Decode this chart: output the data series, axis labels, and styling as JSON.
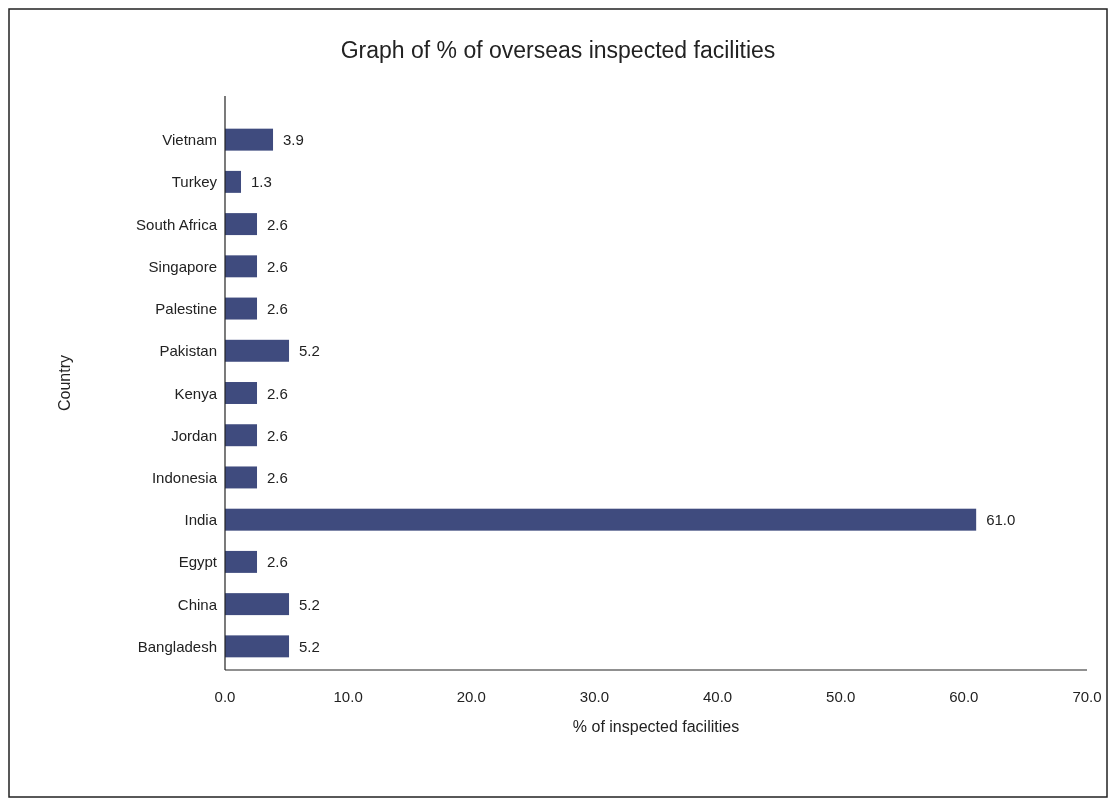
{
  "chart_data": {
    "type": "bar",
    "orientation": "horizontal",
    "title": "Graph of % of overseas inspected facilities",
    "xlabel": "% of inspected facilities",
    "ylabel": "Country",
    "categories": [
      "Vietnam",
      "Turkey",
      "South Africa",
      "Singapore",
      "Palestine",
      "Pakistan",
      "Kenya",
      "Jordan",
      "Indonesia",
      "India",
      "Egypt",
      "China",
      "Bangladesh"
    ],
    "values": [
      3.9,
      1.3,
      2.6,
      2.6,
      2.6,
      5.2,
      2.6,
      2.6,
      2.6,
      61.0,
      2.6,
      5.2,
      5.2
    ],
    "value_labels": [
      "3.9",
      "1.3",
      "2.6",
      "2.6",
      "2.6",
      "5.2",
      "2.6",
      "2.6",
      "2.6",
      "61.0",
      "2.6",
      "5.2",
      "5.2"
    ],
    "color": "#3f4b7e",
    "xlim": [
      0,
      70
    ],
    "xticks": [
      {
        "value": 0,
        "label": "0.0"
      },
      {
        "value": 10,
        "label": "10.0"
      },
      {
        "value": 20,
        "label": "20.0"
      },
      {
        "value": 30,
        "label": "30.0"
      },
      {
        "value": 40,
        "label": "40.0"
      },
      {
        "value": 50,
        "label": "50.0"
      },
      {
        "value": 60,
        "label": "60.0"
      },
      {
        "value": 70,
        "label": "70.0"
      }
    ],
    "grid": false
  }
}
